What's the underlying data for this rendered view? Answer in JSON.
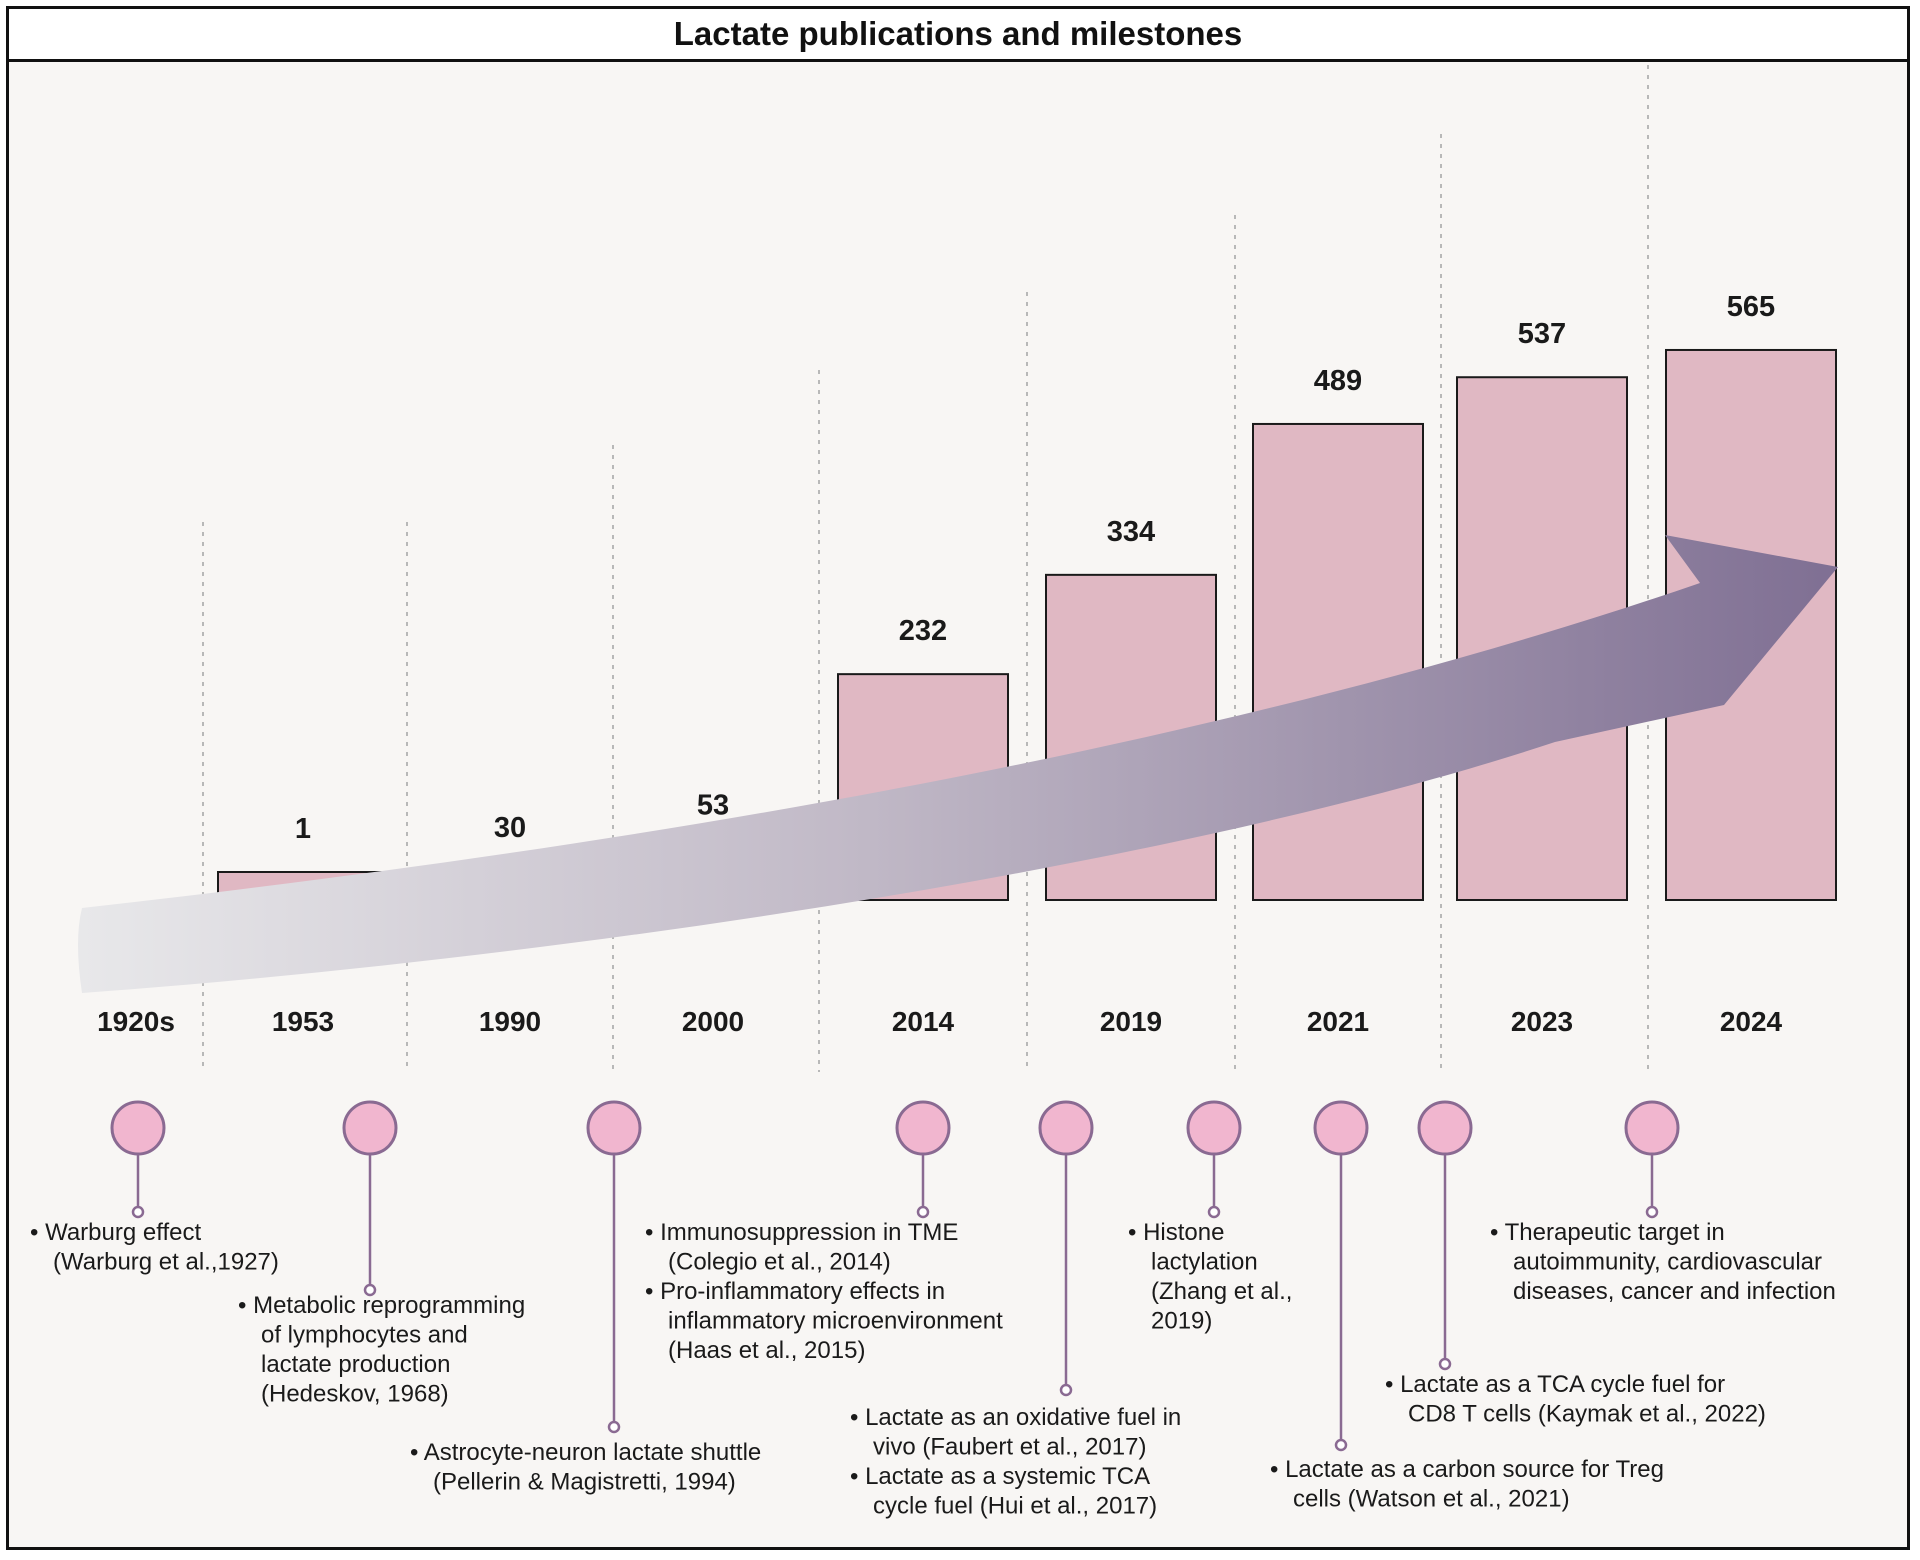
{
  "title": "Lactate publications and milestones",
  "colors": {
    "bar_fill": "#e0b8c3",
    "bar_stroke": "#1a1a1a",
    "circle_fill": "#f1b6cf",
    "circle_stroke": "#8a6a92",
    "stem": "#8a6a92",
    "arrow_start": "#e8e8ea",
    "arrow_end": "#7f6f93",
    "gridline": "#b8b8b8"
  },
  "chart_data": {
    "type": "bar",
    "title": "Lactate publications and milestones",
    "categories": [
      "1920s",
      "1953",
      "1990",
      "2000",
      "2014",
      "2019",
      "2021",
      "2023",
      "2024"
    ],
    "values": [
      null,
      1,
      30,
      53,
      232,
      334,
      489,
      537,
      565
    ],
    "value_labels": [
      "",
      "1",
      "30",
      "53",
      "232",
      "334",
      "489",
      "537",
      "565"
    ],
    "xlabel": "",
    "ylabel": "",
    "grid": "vertical dotted separators",
    "legend": "none"
  },
  "milestones": [
    {
      "lines": [
        "• Warburg effect",
        "  (Warburg et al.,1927)"
      ]
    },
    {
      "lines": [
        "• Metabolic reprogramming",
        "  of lymphocytes and",
        "  lactate production",
        "  (Hedeskov, 1968)"
      ]
    },
    {
      "lines": [
        "• Astrocyte-neuron lactate shuttle",
        "  (Pellerin & Magistretti, 1994)"
      ]
    },
    {
      "lines": [
        "• Immunosuppression in TME",
        "  (Colegio et al., 2014)",
        "• Pro-inflammatory effects in",
        "  inflammatory microenvironment",
        "  (Haas et al., 2015)"
      ]
    },
    {
      "lines": [
        "• Lactate as an oxidative fuel in",
        "  vivo (Faubert et al., 2017)",
        "• Lactate as a systemic TCA",
        "  cycle fuel (Hui et al., 2017)"
      ]
    },
    {
      "lines": [
        "• Histone",
        "  lactylation",
        "  (Zhang et al.,",
        "  2019)"
      ]
    },
    {
      "lines": [
        "• Lactate as a carbon source for Treg",
        "  cells (Watson et al., 2021)"
      ]
    },
    {
      "lines": [
        "• Lactate as a TCA cycle fuel for",
        "  CD8 T cells (Kaymak et al., 2022)"
      ]
    },
    {
      "lines": [
        "• Therapeutic target in",
        "  autoimmunity, cardiovascular",
        "  diseases, cancer and infection"
      ]
    }
  ]
}
